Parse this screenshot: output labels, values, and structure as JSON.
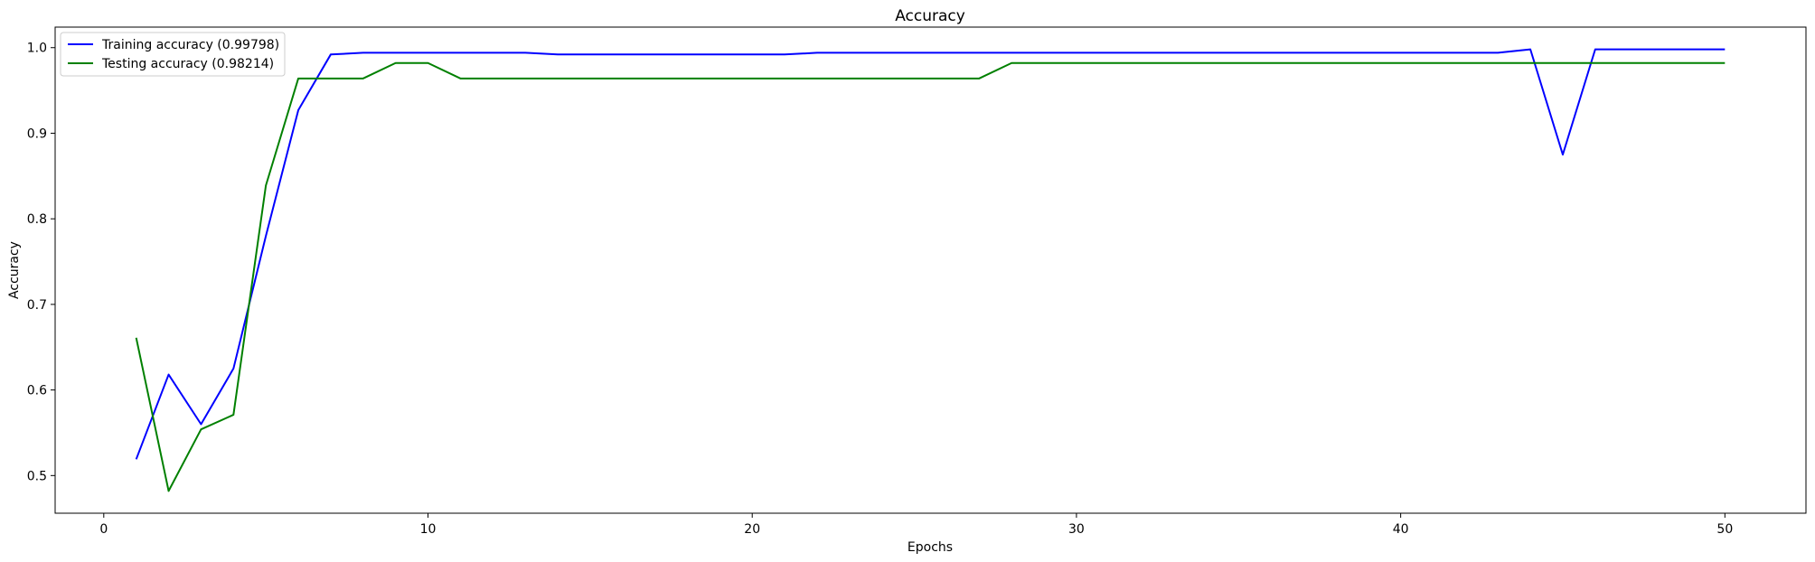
{
  "chart_data": {
    "type": "line",
    "title": "Accuracy",
    "xlabel": "Epochs",
    "ylabel": "Accuracy",
    "xlim": [
      -1.5,
      52.5
    ],
    "ylim": [
      0.456,
      1.024
    ],
    "xticks": [
      0,
      10,
      20,
      30,
      40,
      50
    ],
    "xtick_labels": [
      "0",
      "10",
      "20",
      "30",
      "40",
      "50"
    ],
    "yticks": [
      0.5,
      0.6,
      0.7,
      0.8,
      0.9,
      1.0
    ],
    "ytick_labels": [
      "0.5",
      "0.6",
      "0.7",
      "0.8",
      "0.9",
      "1.0"
    ],
    "grid": false,
    "legend_position": "top-left",
    "x": [
      1,
      2,
      3,
      4,
      5,
      6,
      7,
      8,
      9,
      10,
      11,
      12,
      13,
      14,
      15,
      16,
      17,
      18,
      19,
      20,
      21,
      22,
      23,
      24,
      25,
      26,
      27,
      28,
      29,
      30,
      31,
      32,
      33,
      34,
      35,
      36,
      37,
      38,
      39,
      40,
      41,
      42,
      43,
      44,
      45,
      46,
      47,
      48,
      49,
      50
    ],
    "series": [
      {
        "name": "Training accuracy (0.99798)",
        "color": "#0000ff",
        "values": [
          0.519,
          0.618,
          0.56,
          0.625,
          0.78,
          0.927,
          0.992,
          0.994,
          0.994,
          0.994,
          0.994,
          0.994,
          0.994,
          0.992,
          0.992,
          0.992,
          0.992,
          0.992,
          0.992,
          0.992,
          0.992,
          0.994,
          0.994,
          0.994,
          0.994,
          0.994,
          0.994,
          0.994,
          0.994,
          0.994,
          0.994,
          0.994,
          0.994,
          0.994,
          0.994,
          0.994,
          0.994,
          0.994,
          0.994,
          0.994,
          0.994,
          0.994,
          0.994,
          0.998,
          0.875,
          0.998,
          0.998,
          0.998,
          0.998,
          0.998
        ]
      },
      {
        "name": "Testing accuracy (0.98214)",
        "color": "#008000",
        "values": [
          0.661,
          0.482,
          0.554,
          0.571,
          0.839,
          0.964,
          0.964,
          0.964,
          0.982,
          0.982,
          0.964,
          0.964,
          0.964,
          0.964,
          0.964,
          0.964,
          0.964,
          0.964,
          0.964,
          0.964,
          0.964,
          0.964,
          0.964,
          0.964,
          0.964,
          0.964,
          0.964,
          0.982,
          0.982,
          0.982,
          0.982,
          0.982,
          0.982,
          0.982,
          0.982,
          0.982,
          0.982,
          0.982,
          0.982,
          0.982,
          0.982,
          0.982,
          0.982,
          0.982,
          0.982,
          0.982,
          0.982,
          0.982,
          0.982,
          0.982
        ]
      }
    ]
  }
}
